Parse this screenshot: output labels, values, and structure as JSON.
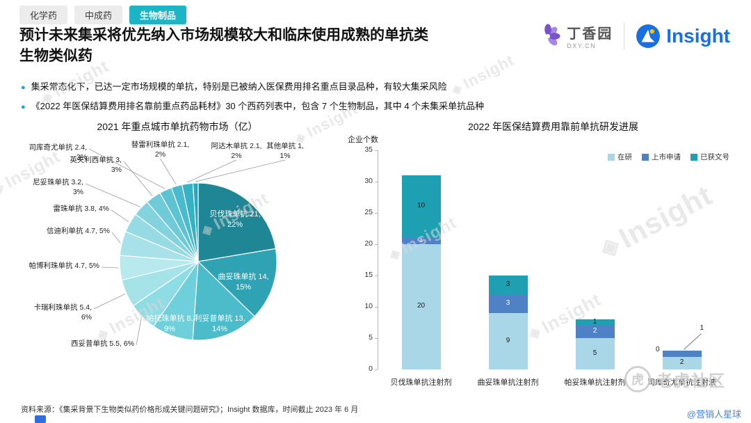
{
  "tabs": [
    {
      "label": "化学药",
      "active": false
    },
    {
      "label": "中成药",
      "active": false
    },
    {
      "label": "生物制品",
      "active": true
    }
  ],
  "title": "预计未来集采将优先纳入市场规模较大和临床使用成熟的单抗类生物类似药",
  "logos": {
    "dxy": {
      "name": "丁香园",
      "domain": "DXY.CN"
    },
    "insight": {
      "name": "Insight"
    }
  },
  "bullets": [
    "集采常态化下，已达一定市场规模的单抗，特别是已被纳入医保费用排名重点目录品种，有较大集采风险",
    "《2022 年医保结算费用排名靠前重点药品耗材》30 个西药列表中，包含 7 个生物制品，其中 4 个未集采单抗品种"
  ],
  "chart_data": [
    {
      "type": "pie",
      "title": "2021 年重点城市单抗药物市场（亿）",
      "labels": [
        "贝伐珠单抗",
        "曲妥珠单抗",
        "利妥昔单抗",
        "帕托珠单抗",
        "西妥昔单抗",
        "卡瑞利珠单抗",
        "帕博利珠单抗",
        "信迪利单抗",
        "雷珠单抗",
        "尼妥珠单抗",
        "英夫利西单抗",
        "司库奇尤单抗",
        "替雷利珠单抗",
        "阿达木单抗",
        "其他单抗"
      ],
      "values": [
        21,
        14,
        13,
        8,
        5.5,
        5.4,
        4.7,
        4.7,
        3.8,
        3.2,
        3,
        2.4,
        2.1,
        2.1,
        1
      ],
      "percents": [
        22,
        15,
        14,
        9,
        6,
        6,
        5,
        5,
        4,
        3,
        3,
        3,
        2,
        2,
        1
      ],
      "colors": [
        "#1e8695",
        "#2fa3b3",
        "#4cbcca",
        "#6fcfda",
        "#8edce4",
        "#a5e3e9",
        "#b7e9ee",
        "#a8e1e9",
        "#96dae4",
        "#83d3de",
        "#70cbd8",
        "#5dc3d2",
        "#4abbcc",
        "#37b2c5",
        "#25a9bf"
      ]
    },
    {
      "type": "bar",
      "stacked": true,
      "title": "2022 年医保结算费用靠前单抗研发进展",
      "ylabel": "企业个数",
      "ylim": [
        0,
        35
      ],
      "yticks": [
        0,
        5,
        10,
        15,
        20,
        25,
        30,
        35
      ],
      "grid": false,
      "legend_position": "top-right",
      "categories": [
        "贝伐珠单抗注射剂",
        "曲妥珠单抗注射剂",
        "帕妥珠单抗注射剂",
        "司库奇尤单抗注射液"
      ],
      "series": [
        {
          "name": "在研",
          "color": "#aad7e8",
          "values": [
            20,
            9,
            5,
            2
          ]
        },
        {
          "name": "上市申请",
          "color": "#4f81c7",
          "values": [
            1,
            3,
            2,
            1
          ]
        },
        {
          "name": "已获文号",
          "color": "#1f9fb2",
          "values": [
            10,
            3,
            1,
            0
          ]
        }
      ]
    }
  ],
  "source": "资料来源：《集采背景下生物类似药价格形成关键问题研究》；Insight 数据库，时间截止 2023 年 6 月",
  "watermark": {
    "insight_text": "Insight",
    "community": "老虎社区",
    "handle": "@营销人星球"
  }
}
